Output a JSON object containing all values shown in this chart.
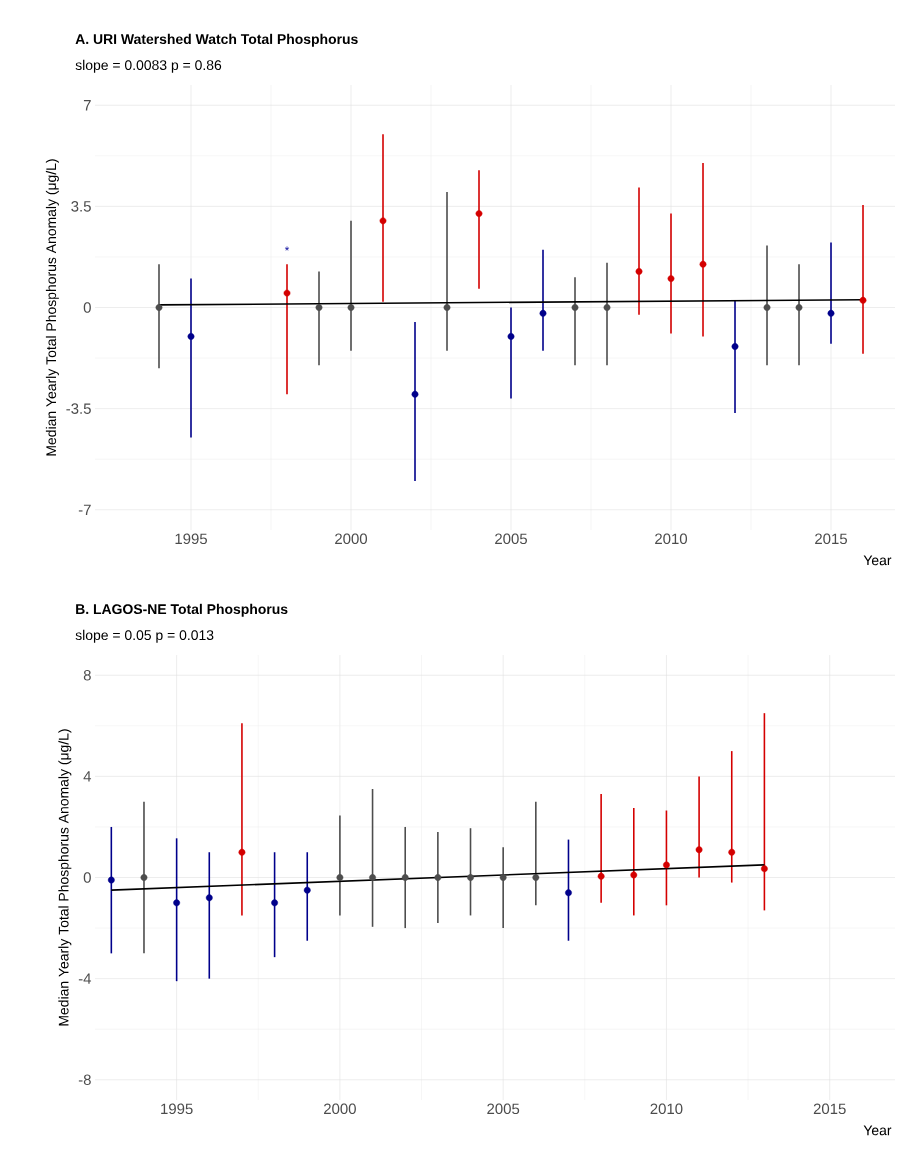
{
  "chart_data": [
    {
      "type": "scatter",
      "title": "A. URI Watershed Watch Total Phosphorus",
      "subtitle": "slope = 0.0083 p = 0.86",
      "xlabel": "Year",
      "ylabel": "Median Yearly Total Phosphorus Anomaly (μg/L)",
      "xlim": [
        1992,
        2017
      ],
      "ylim": [
        -7.7,
        7.7
      ],
      "xticks": [
        1995,
        2000,
        2005,
        2010,
        2015
      ],
      "yticks": [
        -7,
        -3.5,
        0,
        3.5,
        7
      ],
      "grid": true,
      "marker": "circle",
      "annotations": [
        {
          "text": "*",
          "x": 1998,
          "y": 1.5
        }
      ],
      "series": [
        {
          "color": "#4d4d4d",
          "x": [
            1994,
            1999,
            2000,
            2003,
            2007,
            2008,
            2013,
            2014
          ],
          "values": [
            0,
            0,
            0,
            0,
            0,
            0,
            0,
            0
          ],
          "errors": [
            [
              -2.1,
              1.5
            ],
            [
              -2,
              1.25
            ],
            [
              -1.5,
              3
            ],
            [
              -1.5,
              4
            ],
            [
              -2,
              1.05
            ],
            [
              -2,
              1.55
            ],
            [
              -2,
              2.15
            ],
            [
              -2,
              1.5
            ]
          ]
        },
        {
          "color": "#00008b",
          "x": [
            1995,
            2002,
            2005,
            2006,
            2012,
            2015
          ],
          "values": [
            -1,
            -3,
            -1,
            -0.2,
            -1.35,
            -0.2
          ],
          "errors": [
            [
              -4.5,
              1
            ],
            [
              -6,
              -0.5
            ],
            [
              -3.15,
              0
            ],
            [
              -1.5,
              2
            ],
            [
              -3.65,
              0.25
            ],
            [
              -1.25,
              2.25
            ]
          ]
        },
        {
          "color": "#d40000",
          "x": [
            1998,
            2001,
            2004,
            2009,
            2010,
            2011,
            2016
          ],
          "values": [
            0.5,
            3,
            3.25,
            1.25,
            1,
            1.5,
            0.25
          ],
          "errors": [
            [
              -3,
              1.5
            ],
            [
              0.2,
              6
            ],
            [
              0.65,
              4.75
            ],
            [
              -0.25,
              4.15
            ],
            [
              -0.9,
              3.25
            ],
            [
              -1,
              5
            ],
            [
              -1.6,
              3.55
            ]
          ]
        },
        {
          "type": "line",
          "color": "#000000",
          "marker": "none",
          "x": [
            1994,
            2016
          ],
          "values": [
            0.09,
            0.27
          ]
        }
      ]
    },
    {
      "type": "scatter",
      "title": "B. LAGOS-NE Total Phosphorus",
      "subtitle": "slope = 0.05 p = 0.013",
      "xlabel": "Year",
      "ylabel": "Median Yearly Total Phosphorus Anomaly (μg/L)",
      "xlim": [
        1992.5,
        2017
      ],
      "ylim": [
        -8.8,
        8.8
      ],
      "xticks": [
        1995,
        2000,
        2005,
        2010,
        2015
      ],
      "yticks": [
        -8,
        -4,
        0,
        4,
        8
      ],
      "grid": true,
      "marker": "circle",
      "series": [
        {
          "color": "#4d4d4d",
          "x": [
            1994,
            2000,
            2001,
            2002,
            2003,
            2004,
            2005,
            2006
          ],
          "values": [
            0,
            0,
            0,
            0,
            0,
            0,
            0,
            0
          ],
          "errors": [
            [
              -3,
              3
            ],
            [
              -1.5,
              2.45
            ],
            [
              -1.95,
              3.5
            ],
            [
              -2,
              2
            ],
            [
              -1.8,
              1.8
            ],
            [
              -1.5,
              1.95
            ],
            [
              -2,
              1.2
            ],
            [
              -1.1,
              3
            ]
          ]
        },
        {
          "color": "#00008b",
          "x": [
            1993,
            1995,
            1996,
            1998,
            1999,
            2007
          ],
          "values": [
            -0.1,
            -1,
            -0.8,
            -1,
            -0.5,
            -0.6
          ],
          "errors": [
            [
              -3,
              2
            ],
            [
              -4.1,
              1.55
            ],
            [
              -4,
              1
            ],
            [
              -3.15,
              1
            ],
            [
              -2.5,
              1
            ],
            [
              -2.5,
              1.5
            ]
          ]
        },
        {
          "color": "#d40000",
          "x": [
            1997,
            2008,
            2009,
            2010,
            2011,
            2012,
            2013
          ],
          "values": [
            1,
            0.05,
            0.1,
            0.5,
            1.1,
            1,
            0.35
          ],
          "errors": [
            [
              -1.5,
              6.1
            ],
            [
              -1,
              3.3
            ],
            [
              -1.5,
              2.75
            ],
            [
              -1.1,
              2.65
            ],
            [
              0,
              4
            ],
            [
              -0.2,
              5
            ],
            [
              -1.3,
              6.5
            ]
          ]
        },
        {
          "type": "line",
          "color": "#000000",
          "marker": "none",
          "x": [
            1993,
            2013
          ],
          "values": [
            -0.5,
            0.5
          ]
        }
      ]
    }
  ]
}
